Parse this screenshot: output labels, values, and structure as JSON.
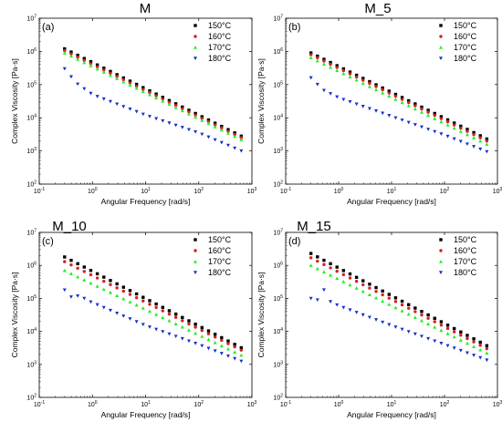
{
  "colors": {
    "150": "#000000",
    "160": "#d62020",
    "170": "#22ee22",
    "180": "#1530c8"
  },
  "chart_data": [
    {
      "type": "scatter",
      "title": "M",
      "panel_label": "(a)",
      "xlabel": "Angular Frequency [rad/s]",
      "ylabel": "Complex Viscosity [Pa·s]",
      "xscale": "log",
      "yscale": "log",
      "xlim": [
        0.1,
        1000
      ],
      "ylim": [
        100,
        10000000
      ],
      "xticks": [
        "10-1",
        "100",
        "101",
        "102",
        "103"
      ],
      "yticks": [
        "102",
        "103",
        "104",
        "105",
        "106",
        "107"
      ],
      "legend_position": "top-right",
      "series": [
        {
          "name": "150°C",
          "color": "#000000",
          "start": [
            0.3,
            1200000
          ],
          "end": [
            630,
            2800
          ],
          "marker": "square"
        },
        {
          "name": "160°C",
          "color": "#d62020",
          "start": [
            0.3,
            1050000
          ],
          "end": [
            630,
            2500
          ],
          "marker": "circle"
        },
        {
          "name": "170°C",
          "color": "#22ee22",
          "start": [
            0.3,
            900000
          ],
          "end": [
            630,
            2200
          ],
          "marker": "triangle-up"
        },
        {
          "name": "180°C",
          "color": "#1530c8",
          "points": [
            [
              0.3,
              300000
            ],
            [
              0.5,
              110000
            ],
            [
              1,
              50000
            ],
            [
              10,
              12000
            ],
            [
              100,
              3500
            ],
            [
              630,
              1000
            ]
          ],
          "marker": "triangle-down"
        }
      ]
    },
    {
      "type": "scatter",
      "title": "M_5",
      "panel_label": "(b)",
      "xlabel": "Angular Frequency [rad/s]",
      "ylabel": "Complex Viscosity [Pa·s]",
      "xscale": "log",
      "yscale": "log",
      "xlim": [
        0.1,
        1000
      ],
      "ylim": [
        100,
        10000000
      ],
      "xticks": [
        "10-1",
        "100",
        "101",
        "102",
        "103"
      ],
      "yticks": [
        "102",
        "103",
        "104",
        "105",
        "106",
        "107"
      ],
      "legend_position": "top-right",
      "series": [
        {
          "name": "150°C",
          "color": "#000000",
          "start": [
            0.3,
            900000
          ],
          "end": [
            630,
            2300
          ],
          "marker": "square"
        },
        {
          "name": "160°C",
          "color": "#d62020",
          "start": [
            0.3,
            800000
          ],
          "end": [
            630,
            2000
          ],
          "marker": "circle"
        },
        {
          "name": "170°C",
          "color": "#22ee22",
          "start": [
            0.3,
            650000
          ],
          "end": [
            630,
            1600
          ],
          "marker": "triangle-up"
        },
        {
          "name": "180°C",
          "color": "#1530c8",
          "points": [
            [
              0.3,
              160000
            ],
            [
              0.5,
              70000
            ],
            [
              1,
              40000
            ],
            [
              10,
              11000
            ],
            [
              100,
              3000
            ],
            [
              630,
              950
            ]
          ],
          "marker": "triangle-down"
        }
      ]
    },
    {
      "type": "scatter",
      "title": "M_10",
      "panel_label": "(c)",
      "xlabel": "Angular Frequency [rad/s]",
      "ylabel": "Complex Viscosity [Pa·s]",
      "xscale": "log",
      "yscale": "log",
      "xlim": [
        0.1,
        1000
      ],
      "ylim": [
        100,
        10000000
      ],
      "xticks": [
        "10-1",
        "100",
        "101",
        "102",
        "103"
      ],
      "yticks": [
        "102",
        "103",
        "104",
        "105",
        "106",
        "107"
      ],
      "legend_position": "top-right",
      "series": [
        {
          "name": "150°C",
          "color": "#000000",
          "start": [
            0.3,
            1800000
          ],
          "end": [
            630,
            3200
          ],
          "marker": "square"
        },
        {
          "name": "160°C",
          "color": "#d62020",
          "start": [
            0.3,
            1300000
          ],
          "end": [
            630,
            2700
          ],
          "marker": "circle"
        },
        {
          "name": "170°C",
          "color": "#22ee22",
          "start": [
            0.3,
            700000
          ],
          "end": [
            630,
            1900
          ],
          "marker": "triangle-up"
        },
        {
          "name": "180°C",
          "color": "#1530c8",
          "points": [
            [
              0.3,
              180000
            ],
            [
              0.4,
              110000
            ],
            [
              0.55,
              120000
            ],
            [
              0.7,
              100000
            ],
            [
              0.9,
              80000
            ],
            [
              10,
              15000
            ],
            [
              100,
              4000
            ],
            [
              630,
              1250
            ]
          ],
          "marker": "triangle-down"
        }
      ]
    },
    {
      "type": "scatter",
      "title": "M_15",
      "panel_label": "(d)",
      "xlabel": "Angular Frequency [rad/s]",
      "ylabel": "Complex Viscosity [Pa·s]",
      "xscale": "log",
      "yscale": "log",
      "xlim": [
        0.1,
        1000
      ],
      "ylim": [
        100,
        10000000
      ],
      "xticks": [
        "10-1",
        "100",
        "101",
        "102",
        "103"
      ],
      "yticks": [
        "102",
        "103",
        "104",
        "105",
        "106",
        "107"
      ],
      "legend_position": "top-right",
      "series": [
        {
          "name": "150°C",
          "color": "#000000",
          "start": [
            0.3,
            2300000
          ],
          "end": [
            630,
            3700
          ],
          "marker": "square"
        },
        {
          "name": "160°C",
          "color": "#d62020",
          "start": [
            0.3,
            1700000
          ],
          "end": [
            630,
            3000
          ],
          "marker": "circle"
        },
        {
          "name": "170°C",
          "color": "#22ee22",
          "start": [
            0.3,
            1000000
          ],
          "end": [
            630,
            2200
          ],
          "marker": "triangle-up"
        },
        {
          "name": "180°C",
          "color": "#1530c8",
          "points": [
            [
              0.3,
              100000
            ],
            [
              0.4,
              90000
            ],
            [
              0.55,
              200000
            ],
            [
              0.7,
              80000
            ],
            [
              1,
              60000
            ],
            [
              10,
              15000
            ],
            [
              100,
              4000
            ],
            [
              630,
              1350
            ]
          ],
          "marker": "triangle-down"
        }
      ]
    }
  ]
}
